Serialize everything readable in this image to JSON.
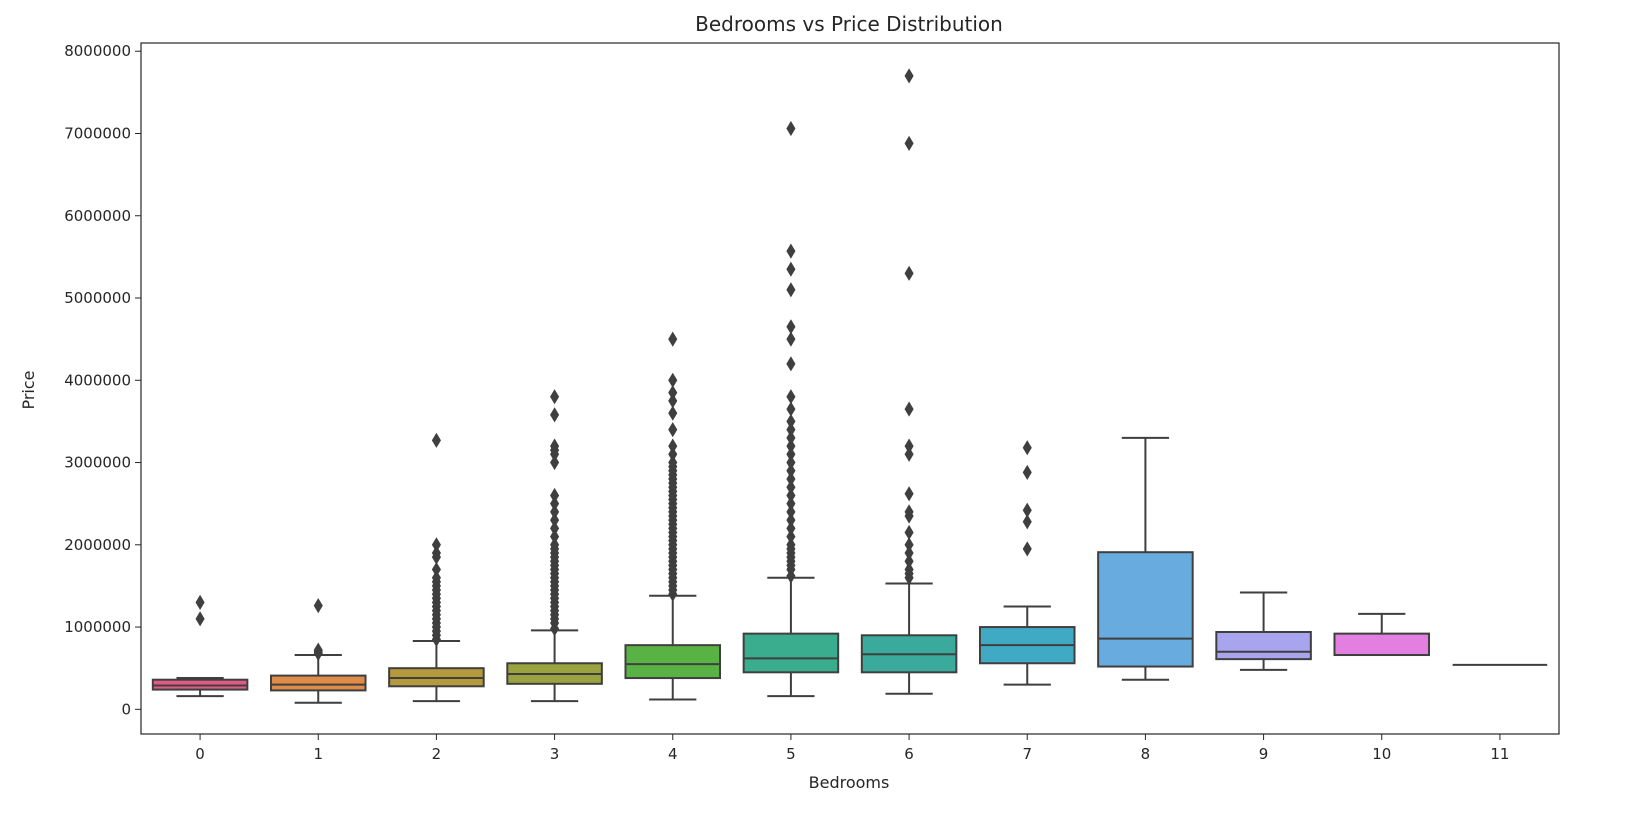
{
  "chart_data": {
    "type": "box",
    "title": "Bedrooms vs Price Distribution",
    "xlabel": "Bedrooms",
    "ylabel": "Price",
    "ylim": [
      -300000,
      8100000
    ],
    "yticks": [
      0,
      1000000,
      2000000,
      3000000,
      4000000,
      5000000,
      6000000,
      7000000,
      8000000
    ],
    "ytick_labels": [
      "0",
      "1000000",
      "2000000",
      "3000000",
      "4000000",
      "5000000",
      "6000000",
      "7000000",
      "8000000"
    ],
    "categories": [
      "0",
      "1",
      "2",
      "3",
      "4",
      "5",
      "6",
      "7",
      "8",
      "9",
      "10",
      "11"
    ],
    "grid": false,
    "line_color": "#3f3f3f",
    "boxes": [
      {
        "category": "0",
        "color": "#e05c86",
        "whislo": 160000,
        "q1": 240000,
        "median": 290000,
        "q3": 360000,
        "whishi": 380000,
        "fliers": [
          1100000,
          1300000
        ]
      },
      {
        "category": "1",
        "color": "#de8c48",
        "whislo": 80000,
        "q1": 230000,
        "median": 300000,
        "q3": 410000,
        "whishi": 660000,
        "fliers": [
          680000,
          700000,
          720000,
          1260000
        ]
      },
      {
        "category": "2",
        "color": "#b49a3c",
        "whislo": 100000,
        "q1": 280000,
        "median": 380000,
        "q3": 500000,
        "whishi": 830000,
        "fliers": [
          850000,
          900000,
          950000,
          1000000,
          1050000,
          1100000,
          1150000,
          1200000,
          1250000,
          1300000,
          1350000,
          1400000,
          1450000,
          1500000,
          1550000,
          1600000,
          1700000,
          1850000,
          1900000,
          2000000,
          3270000
        ]
      },
      {
        "category": "3",
        "color": "#9aa33f",
        "whislo": 100000,
        "q1": 310000,
        "median": 430000,
        "q3": 560000,
        "whishi": 960000,
        "fliers": [
          980000,
          1050000,
          1100000,
          1150000,
          1200000,
          1250000,
          1300000,
          1350000,
          1400000,
          1450000,
          1500000,
          1550000,
          1600000,
          1650000,
          1700000,
          1750000,
          1800000,
          1850000,
          1900000,
          1950000,
          2000000,
          2100000,
          2200000,
          2300000,
          2400000,
          2500000,
          2600000,
          3000000,
          3100000,
          3150000,
          3200000,
          3580000,
          3800000
        ]
      },
      {
        "category": "4",
        "color": "#59b244",
        "whislo": 120000,
        "q1": 380000,
        "median": 550000,
        "q3": 780000,
        "whishi": 1380000,
        "fliers": [
          1400000,
          1450000,
          1500000,
          1550000,
          1600000,
          1650000,
          1700000,
          1750000,
          1800000,
          1850000,
          1900000,
          1950000,
          2000000,
          2050000,
          2100000,
          2150000,
          2200000,
          2250000,
          2300000,
          2350000,
          2400000,
          2450000,
          2500000,
          2550000,
          2600000,
          2650000,
          2700000,
          2750000,
          2800000,
          2850000,
          2900000,
          2950000,
          3000000,
          3100000,
          3200000,
          3400000,
          3600000,
          3750000,
          3850000,
          4000000,
          4500000
        ]
      },
      {
        "category": "5",
        "color": "#3aad8e",
        "whislo": 160000,
        "q1": 450000,
        "median": 620000,
        "q3": 920000,
        "whishi": 1600000,
        "fliers": [
          1620000,
          1700000,
          1750000,
          1800000,
          1850000,
          1900000,
          1950000,
          2000000,
          2100000,
          2200000,
          2300000,
          2400000,
          2500000,
          2600000,
          2700000,
          2800000,
          2900000,
          3000000,
          3100000,
          3200000,
          3300000,
          3400000,
          3500000,
          3650000,
          3800000,
          4200000,
          4500000,
          4650000,
          5100000,
          5350000,
          5570000,
          7060000
        ]
      },
      {
        "category": "6",
        "color": "#39aa9c",
        "whislo": 190000,
        "q1": 450000,
        "median": 670000,
        "q3": 900000,
        "whishi": 1530000,
        "fliers": [
          1600000,
          1650000,
          1700000,
          1800000,
          1900000,
          2000000,
          2150000,
          2350000,
          2400000,
          2620000,
          3100000,
          3200000,
          3650000,
          5300000,
          6880000,
          7700000
        ]
      },
      {
        "category": "7",
        "color": "#40a9c4",
        "whislo": 300000,
        "q1": 560000,
        "median": 780000,
        "q3": 1000000,
        "whishi": 1250000,
        "fliers": [
          1950000,
          2280000,
          2420000,
          2880000,
          3180000
        ]
      },
      {
        "category": "8",
        "color": "#68acdf",
        "whislo": 360000,
        "q1": 520000,
        "median": 860000,
        "q3": 1910000,
        "whishi": 3300000,
        "fliers": []
      },
      {
        "category": "9",
        "color": "#a8a4ee",
        "whislo": 480000,
        "q1": 610000,
        "median": 700000,
        "q3": 940000,
        "whishi": 1420000,
        "fliers": []
      },
      {
        "category": "10",
        "color": "#e27fe0",
        "whislo": 660000,
        "q1": 660000,
        "median": 660000,
        "q3": 920000,
        "whishi": 1160000,
        "fliers": []
      },
      {
        "category": "11",
        "color": "#e569c4",
        "whislo": 540000,
        "q1": 540000,
        "median": 540000,
        "q3": 540000,
        "whishi": 540000,
        "fliers": []
      }
    ]
  }
}
